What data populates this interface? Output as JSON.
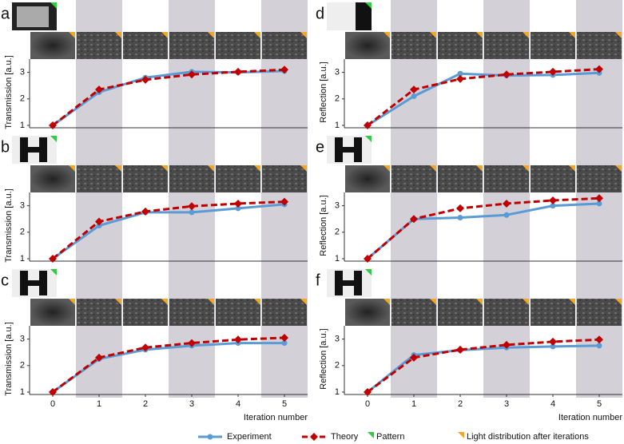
{
  "chart_data": [
    {
      "type": "line",
      "label": "a",
      "ylabel": "Transmission [a.u.]",
      "x": [
        0,
        1,
        2,
        3,
        4,
        5
      ],
      "xlim": [
        -0.5,
        5.5
      ],
      "ylim": [
        1,
        3.5
      ],
      "yticks": [
        1,
        2,
        3
      ],
      "series": [
        {
          "color": "#5b9bd5",
          "values": [
            1,
            2.25,
            2.8,
            3.02,
            3.0,
            3.05
          ]
        },
        {
          "color": "#c00000",
          "values": [
            1,
            2.35,
            2.72,
            2.92,
            3.02,
            3.1
          ]
        }
      ]
    },
    {
      "type": "line",
      "label": "b",
      "ylabel": "Transmission [a.u.]",
      "x": [
        0,
        1,
        2,
        3,
        4,
        5
      ],
      "xlim": [
        -0.5,
        5.5
      ],
      "ylim": [
        1,
        3.5
      ],
      "yticks": [
        1,
        2,
        3
      ],
      "series": [
        {
          "color": "#5b9bd5",
          "values": [
            1,
            2.25,
            2.75,
            2.75,
            2.9,
            3.05
          ]
        },
        {
          "color": "#c00000",
          "values": [
            1,
            2.4,
            2.78,
            2.98,
            3.08,
            3.15
          ]
        }
      ]
    },
    {
      "type": "line",
      "label": "c",
      "ylabel": "Transmission [a.u.]",
      "xlabel": "Iteration number",
      "x": [
        0,
        1,
        2,
        3,
        4,
        5
      ],
      "xlim": [
        -0.5,
        5.5
      ],
      "xticks": [
        0,
        1,
        2,
        3,
        4,
        5
      ],
      "ylim": [
        1,
        3.5
      ],
      "yticks": [
        1,
        2,
        3
      ],
      "series": [
        {
          "color": "#5b9bd5",
          "values": [
            1,
            2.25,
            2.6,
            2.75,
            2.85,
            2.85
          ]
        },
        {
          "color": "#c00000",
          "values": [
            1,
            2.3,
            2.68,
            2.85,
            2.98,
            3.05
          ]
        }
      ]
    },
    {
      "type": "line",
      "label": "d",
      "ylabel": "Reflection [a.u.]",
      "x": [
        0,
        1,
        2,
        3,
        4,
        5
      ],
      "xlim": [
        -0.5,
        5.5
      ],
      "ylim": [
        1,
        3.5
      ],
      "yticks": [
        1,
        2,
        3
      ],
      "series": [
        {
          "color": "#5b9bd5",
          "values": [
            1,
            2.1,
            2.95,
            2.88,
            2.9,
            2.98
          ]
        },
        {
          "color": "#c00000",
          "values": [
            1,
            2.35,
            2.75,
            2.92,
            3.02,
            3.12
          ]
        }
      ]
    },
    {
      "type": "line",
      "label": "e",
      "ylabel": "Reflection [a.u.]",
      "x": [
        0,
        1,
        2,
        3,
        4,
        5
      ],
      "xlim": [
        -0.5,
        5.5
      ],
      "ylim": [
        1,
        3.5
      ],
      "yticks": [
        1,
        2,
        3
      ],
      "series": [
        {
          "color": "#5b9bd5",
          "values": [
            1,
            2.5,
            2.55,
            2.65,
            3.0,
            3.08
          ]
        },
        {
          "color": "#c00000",
          "values": [
            1,
            2.5,
            2.9,
            3.08,
            3.2,
            3.28
          ]
        }
      ]
    },
    {
      "type": "line",
      "label": "f",
      "ylabel": "Reflection [a.u.]",
      "xlabel": "Iteration number",
      "x": [
        0,
        1,
        2,
        3,
        4,
        5
      ],
      "xlim": [
        -0.5,
        5.5
      ],
      "xticks": [
        0,
        1,
        2,
        3,
        4,
        5
      ],
      "ylim": [
        1,
        3.5
      ],
      "yticks": [
        1,
        2,
        3
      ],
      "series": [
        {
          "color": "#5b9bd5",
          "values": [
            1,
            2.4,
            2.58,
            2.68,
            2.72,
            2.75
          ]
        },
        {
          "color": "#c00000",
          "values": [
            1,
            2.3,
            2.6,
            2.78,
            2.9,
            2.98
          ]
        }
      ]
    }
  ],
  "legend": [
    {
      "label": "Experiment",
      "color": "#5b9bd5"
    },
    {
      "label": "Theory",
      "color": "#c00000"
    },
    {
      "label": "Pattern",
      "color": "#2ecc40"
    },
    {
      "label": "Light distribution after iterations",
      "color": "#f5a623"
    }
  ]
}
